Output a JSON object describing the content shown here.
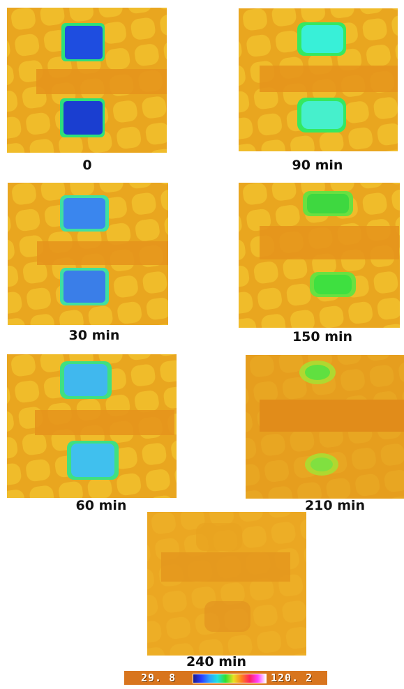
{
  "panels": [
    {
      "caption": "0"
    },
    {
      "caption": "90 min"
    },
    {
      "caption": "30 min"
    },
    {
      "caption": "150 min"
    },
    {
      "caption": "60 min"
    },
    {
      "caption": "210 min"
    },
    {
      "caption": "240 min"
    }
  ],
  "scale": {
    "min_label": "29. 8",
    "max_label": "120. 2",
    "gradient_colors": [
      "#1a1a8a",
      "#2a3cff",
      "#2aa0ff",
      "#20e0e0",
      "#30e030",
      "#e8e020",
      "#ff8020",
      "#ff2060",
      "#ff40ff",
      "#ffffff"
    ]
  }
}
